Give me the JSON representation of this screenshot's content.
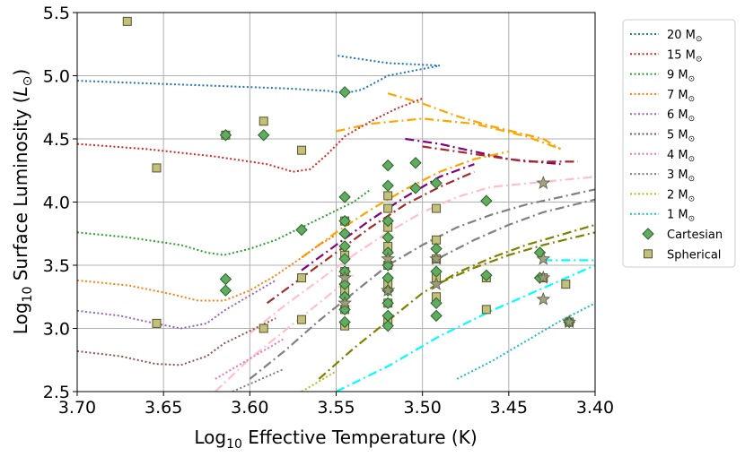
{
  "chart_data": {
    "type": "line",
    "title": "",
    "xlabel_parts": [
      "Log",
      "10",
      " Effective Temperature (K)"
    ],
    "ylabel_parts": [
      "Log",
      "10",
      " Surface Luminosity (",
      "L",
      "⊙",
      ")"
    ],
    "xlim": [
      3.7,
      3.4
    ],
    "ylim": [
      2.5,
      5.5
    ],
    "x_ticks": [
      "3.70",
      "3.65",
      "3.60",
      "3.55",
      "3.50",
      "3.45",
      "3.40"
    ],
    "y_ticks": [
      "2.5",
      "3.0",
      "3.5",
      "4.0",
      "4.5",
      "5.0",
      "5.5"
    ],
    "grid": true,
    "legend_position": "outside-right",
    "mass_unit": "M⊙",
    "tracks": [
      {
        "name": "20",
        "color": "#1f77b4",
        "points": [
          [
            3.7,
            4.96
          ],
          [
            3.66,
            4.94
          ],
          [
            3.62,
            4.92
          ],
          [
            3.58,
            4.9
          ],
          [
            3.555,
            4.88
          ],
          [
            3.545,
            4.86
          ],
          [
            3.535,
            4.89
          ],
          [
            3.52,
            5.0
          ],
          [
            3.49,
            5.08
          ],
          [
            3.52,
            5.1
          ],
          [
            3.55,
            5.16
          ]
        ]
      },
      {
        "name": "15",
        "color": "#d62728",
        "points": [
          [
            3.7,
            4.46
          ],
          [
            3.66,
            4.42
          ],
          [
            3.62,
            4.36
          ],
          [
            3.59,
            4.3
          ],
          [
            3.575,
            4.24
          ],
          [
            3.565,
            4.26
          ],
          [
            3.555,
            4.38
          ],
          [
            3.545,
            4.52
          ],
          [
            3.53,
            4.64
          ],
          [
            3.515,
            4.74
          ],
          [
            3.5,
            4.82
          ]
        ]
      },
      {
        "name": "9",
        "color": "#2ca02c",
        "points": [
          [
            3.7,
            3.76
          ],
          [
            3.67,
            3.72
          ],
          [
            3.64,
            3.66
          ],
          [
            3.625,
            3.6
          ],
          [
            3.615,
            3.58
          ],
          [
            3.6,
            3.63
          ],
          [
            3.585,
            3.7
          ],
          [
            3.57,
            3.8
          ],
          [
            3.555,
            3.9
          ],
          [
            3.54,
            4.0
          ],
          [
            3.53,
            4.1
          ]
        ]
      },
      {
        "name": "7",
        "color": "#ff7f0e",
        "points": [
          [
            3.7,
            3.38
          ],
          [
            3.67,
            3.34
          ],
          [
            3.645,
            3.27
          ],
          [
            3.63,
            3.22
          ],
          [
            3.615,
            3.22
          ],
          [
            3.6,
            3.3
          ],
          [
            3.585,
            3.42
          ],
          [
            3.57,
            3.56
          ],
          [
            3.56,
            3.66
          ],
          [
            3.55,
            3.74
          ]
        ]
      },
      {
        "name": "6",
        "color": "#9467bd",
        "points": [
          [
            3.7,
            3.14
          ],
          [
            3.675,
            3.1
          ],
          [
            3.655,
            3.04
          ],
          [
            3.64,
            3.0
          ],
          [
            3.625,
            3.04
          ],
          [
            3.615,
            3.14
          ],
          [
            3.6,
            3.26
          ],
          [
            3.585,
            3.38
          ]
        ]
      },
      {
        "name": "5",
        "color": "#8c564b",
        "points": [
          [
            3.7,
            2.82
          ],
          [
            3.675,
            2.78
          ],
          [
            3.655,
            2.72
          ],
          [
            3.64,
            2.71
          ],
          [
            3.625,
            2.78
          ],
          [
            3.615,
            2.88
          ],
          [
            3.6,
            2.98
          ],
          [
            3.585,
            3.08
          ]
        ]
      },
      {
        "name": "4",
        "color": "#e377c2",
        "points": [
          [
            3.62,
            2.6
          ],
          [
            3.61,
            2.68
          ],
          [
            3.6,
            2.76
          ],
          [
            3.59,
            2.84
          ],
          [
            3.58,
            2.92
          ]
        ]
      },
      {
        "name": "3",
        "color": "#7f7f7f",
        "points": [
          [
            3.61,
            2.5
          ],
          [
            3.6,
            2.56
          ],
          [
            3.59,
            2.62
          ],
          [
            3.58,
            2.68
          ]
        ]
      },
      {
        "name": "2",
        "color": "#bcbd22",
        "points": [
          [
            3.57,
            2.5
          ],
          [
            3.56,
            2.58
          ],
          [
            3.55,
            2.66
          ]
        ]
      },
      {
        "name": "1",
        "color": "#17becf",
        "points": [
          [
            3.48,
            2.6
          ],
          [
            3.46,
            2.74
          ],
          [
            3.44,
            2.9
          ],
          [
            3.42,
            3.06
          ],
          [
            3.4,
            3.2
          ]
        ]
      }
    ],
    "dashdot_tracks": [
      {
        "color": "#ffa500",
        "points": [
          [
            3.55,
            4.56
          ],
          [
            3.53,
            4.62
          ],
          [
            3.5,
            4.66
          ],
          [
            3.47,
            4.62
          ],
          [
            3.44,
            4.52
          ],
          [
            3.42,
            4.42
          ]
        ]
      },
      {
        "color": "#ffa500",
        "points": [
          [
            3.52,
            4.86
          ],
          [
            3.5,
            4.78
          ],
          [
            3.48,
            4.68
          ],
          [
            3.46,
            4.6
          ],
          [
            3.43,
            4.5
          ],
          [
            3.42,
            4.42
          ]
        ]
      },
      {
        "color": "#800080",
        "points": [
          [
            3.51,
            4.5
          ],
          [
            3.49,
            4.46
          ],
          [
            3.47,
            4.4
          ],
          [
            3.45,
            4.34
          ],
          [
            3.42,
            4.3
          ]
        ]
      },
      {
        "color": "#a52a2a",
        "points": [
          [
            3.5,
            4.44
          ],
          [
            3.48,
            4.4
          ],
          [
            3.46,
            4.36
          ],
          [
            3.44,
            4.32
          ],
          [
            3.41,
            4.32
          ]
        ]
      },
      {
        "color": "#ffa500",
        "points": [
          [
            3.57,
            3.56
          ],
          [
            3.55,
            3.76
          ],
          [
            3.53,
            3.94
          ],
          [
            3.51,
            4.1
          ],
          [
            3.49,
            4.24
          ],
          [
            3.47,
            4.34
          ],
          [
            3.45,
            4.4
          ]
        ]
      },
      {
        "color": "#800080",
        "points": [
          [
            3.57,
            3.46
          ],
          [
            3.55,
            3.66
          ],
          [
            3.53,
            3.86
          ],
          [
            3.51,
            4.04
          ],
          [
            3.49,
            4.2
          ],
          [
            3.47,
            4.3
          ]
        ]
      },
      {
        "color": "#a52a2a",
        "points": [
          [
            3.59,
            3.2
          ],
          [
            3.57,
            3.4
          ],
          [
            3.55,
            3.6
          ],
          [
            3.53,
            3.8
          ],
          [
            3.51,
            3.98
          ],
          [
            3.49,
            4.12
          ],
          [
            3.47,
            4.24
          ]
        ]
      },
      {
        "color": "#ffc0cb",
        "points": [
          [
            3.6,
            2.96
          ],
          [
            3.58,
            3.18
          ],
          [
            3.56,
            3.38
          ],
          [
            3.54,
            3.58
          ],
          [
            3.52,
            3.76
          ],
          [
            3.5,
            3.92
          ],
          [
            3.48,
            4.04
          ],
          [
            3.46,
            4.12
          ],
          [
            3.43,
            4.16
          ],
          [
            3.4,
            4.2
          ]
        ]
      },
      {
        "color": "#ffc0cb",
        "points": [
          [
            3.62,
            2.5
          ],
          [
            3.6,
            2.76
          ],
          [
            3.58,
            2.98
          ],
          [
            3.56,
            3.2
          ],
          [
            3.54,
            3.42
          ]
        ]
      },
      {
        "color": "#808080",
        "points": [
          [
            3.6,
            2.6
          ],
          [
            3.58,
            2.82
          ],
          [
            3.56,
            3.06
          ],
          [
            3.54,
            3.28
          ],
          [
            3.52,
            3.5
          ],
          [
            3.5,
            3.66
          ],
          [
            3.48,
            3.8
          ],
          [
            3.46,
            3.9
          ],
          [
            3.44,
            3.98
          ],
          [
            3.42,
            4.04
          ],
          [
            3.4,
            4.1
          ]
        ]
      },
      {
        "color": "#808080",
        "points": [
          [
            3.49,
            3.56
          ],
          [
            3.47,
            3.7
          ],
          [
            3.45,
            3.82
          ],
          [
            3.43,
            3.92
          ],
          [
            3.4,
            4.02
          ]
        ]
      },
      {
        "color": "#808000",
        "points": [
          [
            3.56,
            2.6
          ],
          [
            3.54,
            2.84
          ],
          [
            3.52,
            3.06
          ],
          [
            3.5,
            3.28
          ],
          [
            3.48,
            3.44
          ],
          [
            3.46,
            3.56
          ],
          [
            3.44,
            3.66
          ],
          [
            3.42,
            3.74
          ],
          [
            3.4,
            3.82
          ]
        ]
      },
      {
        "color": "#808000",
        "points": [
          [
            3.49,
            3.36
          ],
          [
            3.47,
            3.48
          ],
          [
            3.45,
            3.58
          ],
          [
            3.43,
            3.66
          ],
          [
            3.4,
            3.76
          ]
        ]
      },
      {
        "color": "#00ffff",
        "points": [
          [
            3.55,
            2.5
          ],
          [
            3.52,
            2.7
          ],
          [
            3.49,
            2.94
          ],
          [
            3.46,
            3.14
          ],
          [
            3.43,
            3.32
          ],
          [
            3.4,
            3.5
          ]
        ]
      },
      {
        "color": "#00ffff",
        "points": [
          [
            3.43,
            3.54
          ],
          [
            3.4,
            3.54
          ]
        ]
      }
    ],
    "legend": [
      {
        "label": "20",
        "color": "#1f77b4"
      },
      {
        "label": "15",
        "color": "#d62728"
      },
      {
        "label": "9",
        "color": "#2ca02c"
      },
      {
        "label": "7",
        "color": "#ff7f0e"
      },
      {
        "label": "6",
        "color": "#9467bd"
      },
      {
        "label": "5",
        "color": "#8c564b"
      },
      {
        "label": "4",
        "color": "#e377c2"
      },
      {
        "label": "3",
        "color": "#7f7f7f"
      },
      {
        "label": "2",
        "color": "#bcbd22"
      },
      {
        "label": "1",
        "color": "#17becf"
      },
      {
        "label": "Cartesian",
        "marker": "diamond",
        "color": "#5fae5f"
      },
      {
        "label": "Spherical",
        "marker": "square",
        "color": "#c2c07a"
      }
    ],
    "cartesian_points": [
      [
        3.614,
        4.53
      ],
      [
        3.592,
        4.53
      ],
      [
        3.545,
        4.87
      ],
      [
        3.614,
        3.39
      ],
      [
        3.614,
        3.3
      ],
      [
        3.57,
        3.78
      ],
      [
        3.545,
        4.04
      ],
      [
        3.545,
        3.85
      ],
      [
        3.545,
        3.75
      ],
      [
        3.545,
        3.65
      ],
      [
        3.545,
        3.55
      ],
      [
        3.545,
        3.45
      ],
      [
        3.545,
        3.35
      ],
      [
        3.545,
        3.25
      ],
      [
        3.545,
        3.15
      ],
      [
        3.545,
        3.05
      ],
      [
        3.52,
        4.29
      ],
      [
        3.52,
        4.13
      ],
      [
        3.52,
        3.85
      ],
      [
        3.52,
        3.72
      ],
      [
        3.52,
        3.6
      ],
      [
        3.52,
        3.5
      ],
      [
        3.52,
        3.4
      ],
      [
        3.52,
        3.3
      ],
      [
        3.52,
        3.2
      ],
      [
        3.52,
        3.1
      ],
      [
        3.52,
        3.02
      ],
      [
        3.504,
        4.31
      ],
      [
        3.504,
        4.11
      ],
      [
        3.492,
        4.15
      ],
      [
        3.492,
        3.63
      ],
      [
        3.492,
        3.45
      ],
      [
        3.492,
        3.2
      ],
      [
        3.492,
        3.1
      ],
      [
        3.463,
        4.01
      ],
      [
        3.463,
        3.42
      ],
      [
        3.432,
        3.6
      ],
      [
        3.432,
        3.4
      ],
      [
        3.415,
        3.05
      ]
    ],
    "spherical_points": [
      [
        3.671,
        5.43
      ],
      [
        3.614,
        4.53
      ],
      [
        3.654,
        4.27
      ],
      [
        3.592,
        4.64
      ],
      [
        3.57,
        4.41
      ],
      [
        3.654,
        3.04
      ],
      [
        3.592,
        3.0
      ],
      [
        3.57,
        3.4
      ],
      [
        3.57,
        3.07
      ],
      [
        3.545,
        3.85
      ],
      [
        3.545,
        3.58
      ],
      [
        3.545,
        3.45
      ],
      [
        3.545,
        3.3
      ],
      [
        3.545,
        3.15
      ],
      [
        3.545,
        3.02
      ],
      [
        3.52,
        4.05
      ],
      [
        3.52,
        3.95
      ],
      [
        3.52,
        3.8
      ],
      [
        3.52,
        3.65
      ],
      [
        3.52,
        3.5
      ],
      [
        3.52,
        3.35
      ],
      [
        3.52,
        3.2
      ],
      [
        3.52,
        3.05
      ],
      [
        3.492,
        3.95
      ],
      [
        3.492,
        3.7
      ],
      [
        3.492,
        3.55
      ],
      [
        3.492,
        3.4
      ],
      [
        3.492,
        3.25
      ],
      [
        3.463,
        3.4
      ],
      [
        3.463,
        3.15
      ],
      [
        3.43,
        3.4
      ],
      [
        3.417,
        3.35
      ],
      [
        3.415,
        3.05
      ]
    ],
    "star_points": [
      [
        3.545,
        3.4
      ],
      [
        3.545,
        3.2
      ],
      [
        3.52,
        3.55
      ],
      [
        3.52,
        3.3
      ],
      [
        3.492,
        3.55
      ],
      [
        3.492,
        3.35
      ],
      [
        3.43,
        4.15
      ],
      [
        3.43,
        3.55
      ],
      [
        3.43,
        3.4
      ],
      [
        3.43,
        3.23
      ],
      [
        3.415,
        3.05
      ]
    ]
  }
}
